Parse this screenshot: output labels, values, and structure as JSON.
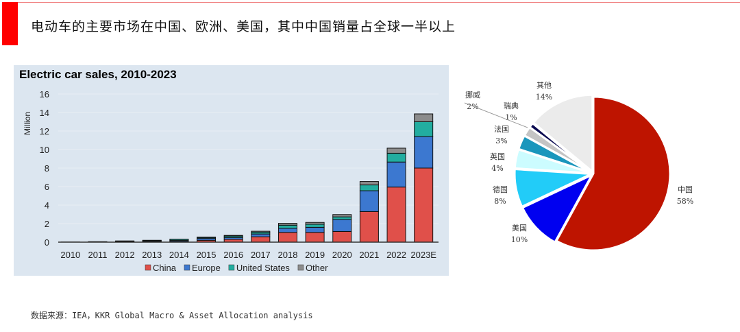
{
  "header": {
    "title": "电动车的主要市场在中国、欧洲、美国，其中中国销量占全球一半以上"
  },
  "source": "数据来源：IEA，KKR Global Macro & Asset Allocation analysis",
  "chart_data": [
    {
      "type": "bar",
      "stacked": true,
      "title": "Electric car sales, 2010-2023",
      "ylabel": "Million",
      "xlabel": "",
      "ylim": [
        0,
        16
      ],
      "yticks": [
        0,
        2,
        4,
        6,
        8,
        10,
        12,
        14,
        16
      ],
      "grid": true,
      "legend": "bottom",
      "categories": [
        "2010",
        "2011",
        "2012",
        "2013",
        "2014",
        "2015",
        "2016",
        "2017",
        "2018",
        "2019",
        "2020",
        "2021",
        "2022",
        "2023E"
      ],
      "series": [
        {
          "name": "China",
          "color": "#e0504a",
          "values": [
            0.002,
            0.01,
            0.02,
            0.03,
            0.08,
            0.2,
            0.3,
            0.58,
            1.05,
            1.05,
            1.15,
            3.3,
            5.95,
            8.0
          ]
        },
        {
          "name": "Europe",
          "color": "#3c78d0",
          "values": [
            0.005,
            0.02,
            0.05,
            0.08,
            0.1,
            0.2,
            0.2,
            0.3,
            0.45,
            0.55,
            1.3,
            2.25,
            2.7,
            3.4
          ]
        },
        {
          "name": "United States",
          "color": "#22ada0",
          "values": [
            0.003,
            0.015,
            0.05,
            0.08,
            0.12,
            0.1,
            0.16,
            0.2,
            0.33,
            0.33,
            0.28,
            0.63,
            0.95,
            1.6
          ]
        },
        {
          "name": "Other",
          "color": "#8c8c8c",
          "values": [
            0.0,
            0.005,
            0.01,
            0.01,
            0.02,
            0.05,
            0.07,
            0.1,
            0.2,
            0.2,
            0.25,
            0.37,
            0.55,
            0.85
          ]
        }
      ]
    },
    {
      "type": "pie",
      "slices": [
        {
          "label": "中国",
          "value": 58,
          "pct": "58%",
          "color": "#be1400"
        },
        {
          "label": "美国",
          "value": 10,
          "pct": "10%",
          "color": "#0000f0"
        },
        {
          "label": "德国",
          "value": 8,
          "pct": "8%",
          "color": "#22ccf8"
        },
        {
          "label": "英国",
          "value": 4,
          "pct": "4%",
          "color": "#ccfcff"
        },
        {
          "label": "法国",
          "value": 3,
          "pct": "3%",
          "color": "#1a96bc"
        },
        {
          "label": "挪威",
          "value": 2,
          "pct": "2%",
          "color": "#c4c4c4"
        },
        {
          "label": "瑞典",
          "value": 1,
          "pct": "1%",
          "color": "#0a0a50"
        },
        {
          "label": "其他",
          "value": 14,
          "pct": "14%",
          "color": "#ebebeb"
        }
      ]
    }
  ]
}
